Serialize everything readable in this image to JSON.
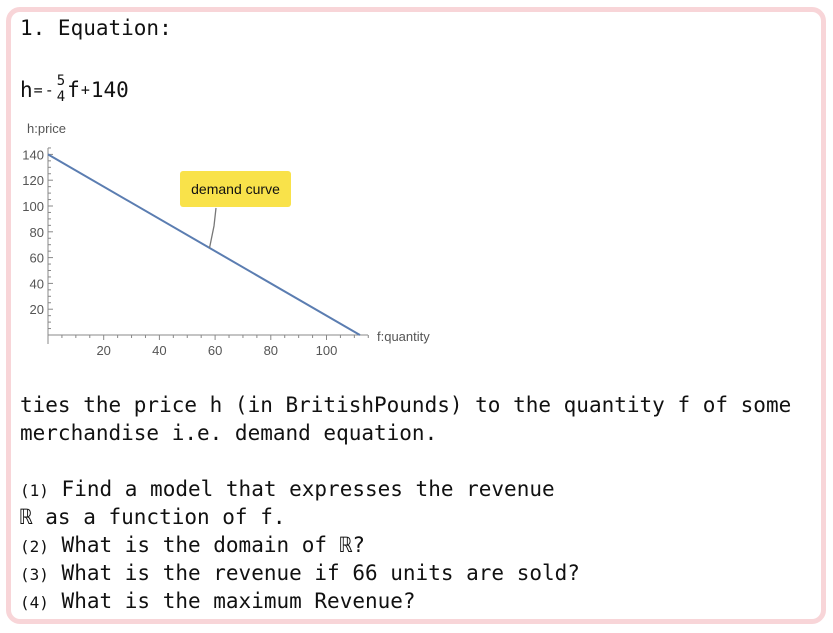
{
  "problem": {
    "heading": "1. Equation:",
    "equation": {
      "lhs": "h",
      "eq": "=",
      "minus": "-",
      "num": "5",
      "den": "4",
      "var": "f",
      "plus": "+",
      "const": "140"
    },
    "desc_line1": "ties the price h (in BritishPounds) to the quantity f of some",
    "desc_line2": "merchandise i.e. demand equation.",
    "questions": [
      {
        "num": "(1)",
        "text": " Find a model that expresses the revenue"
      },
      {
        "text": "ℝ as a function of f."
      },
      {
        "num": "(2)",
        "text": " What is the domain of ℝ?"
      },
      {
        "num": "(3)",
        "text": " What is the revenue if 66 units are sold?"
      },
      {
        "num": "(4)",
        "text": " What is the maximum Revenue?"
      }
    ]
  },
  "chart_data": {
    "type": "line",
    "xlabel": "f:quantity",
    "ylabel": "h:price",
    "xlim": [
      0,
      115
    ],
    "ylim": [
      0,
      145
    ],
    "xticks": [
      20,
      40,
      60,
      80,
      100
    ],
    "yticks": [
      20,
      40,
      60,
      80,
      100,
      120,
      140
    ],
    "series": [
      {
        "x": [
          0,
          112
        ],
        "y": [
          140,
          0
        ]
      }
    ],
    "annotation": {
      "text": "demand curve",
      "x": 58,
      "y": 67.5
    },
    "line_color": "#5b7db1",
    "callout_color": "#f9e24a"
  }
}
